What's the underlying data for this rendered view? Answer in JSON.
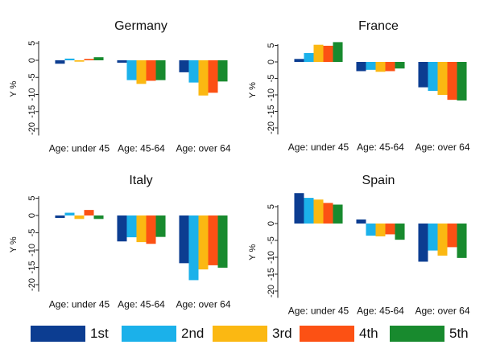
{
  "chart_data": [
    {
      "type": "bar",
      "title": "Germany",
      "ylabel": "Y %",
      "xlabel": "",
      "yticks": [
        5,
        0,
        -5,
        -10,
        -15,
        -20
      ],
      "ylim": [
        -22,
        6
      ],
      "grid": false,
      "categories": [
        "Age: under 45",
        "Age: 45-64",
        "Age: over 64"
      ],
      "series": [
        {
          "name": "1st",
          "values": [
            -1.0,
            -0.7,
            -3.5
          ]
        },
        {
          "name": "2nd",
          "values": [
            0.5,
            -5.8,
            -6.5
          ]
        },
        {
          "name": "3rd",
          "values": [
            -0.4,
            -6.9,
            -10.3
          ]
        },
        {
          "name": "4th",
          "values": [
            0.4,
            -6.0,
            -9.5
          ]
        },
        {
          "name": "5th",
          "values": [
            0.9,
            -5.8,
            -6.2
          ]
        }
      ]
    },
    {
      "type": "bar",
      "title": "France",
      "ylabel": "Y %",
      "xlabel": "",
      "yticks": [
        5,
        0,
        -5,
        -10,
        -15,
        -20
      ],
      "ylim": [
        -22,
        7
      ],
      "grid": false,
      "categories": [
        "Age: under 45",
        "Age: 45-64",
        "Age: over 64"
      ],
      "series": [
        {
          "name": "1st",
          "values": [
            0.9,
            -2.8,
            -7.7
          ]
        },
        {
          "name": "2nd",
          "values": [
            2.7,
            -2.4,
            -8.8
          ]
        },
        {
          "name": "3rd",
          "values": [
            5.2,
            -3.0,
            -10.0
          ]
        },
        {
          "name": "4th",
          "values": [
            4.9,
            -2.8,
            -11.5
          ]
        },
        {
          "name": "5th",
          "values": [
            6.0,
            -2.0,
            -11.7
          ]
        }
      ]
    },
    {
      "type": "bar",
      "title": "Italy",
      "ylabel": "Y %",
      "xlabel": "",
      "yticks": [
        5,
        0,
        -5,
        -10,
        -15,
        -20
      ],
      "ylim": [
        -22,
        6
      ],
      "grid": false,
      "categories": [
        "Age: under 45",
        "Age: 45-64",
        "Age: over 64"
      ],
      "series": [
        {
          "name": "1st",
          "values": [
            -0.7,
            -7.5,
            -13.8
          ]
        },
        {
          "name": "2nd",
          "values": [
            0.8,
            -6.3,
            -18.7
          ]
        },
        {
          "name": "3rd",
          "values": [
            -1.0,
            -7.7,
            -15.6
          ]
        },
        {
          "name": "4th",
          "values": [
            1.6,
            -8.2,
            -14.4
          ]
        },
        {
          "name": "5th",
          "values": [
            -1.0,
            -6.2,
            -15.1
          ]
        }
      ]
    },
    {
      "type": "bar",
      "title": "Spain",
      "ylabel": "Y %",
      "xlabel": "",
      "yticks": [
        5,
        0,
        -5,
        -10,
        -15,
        -20
      ],
      "ylim": [
        -22,
        11
      ],
      "grid": false,
      "categories": [
        "Age: under 45",
        "Age: 45-64",
        "Age: over 64"
      ],
      "series": [
        {
          "name": "1st",
          "values": [
            9.0,
            1.2,
            -11.3
          ]
        },
        {
          "name": "2nd",
          "values": [
            7.6,
            -3.6,
            -8.0
          ]
        },
        {
          "name": "3rd",
          "values": [
            7.1,
            -3.8,
            -9.5
          ]
        },
        {
          "name": "4th",
          "values": [
            6.1,
            -3.2,
            -7.0
          ]
        },
        {
          "name": "5th",
          "values": [
            5.6,
            -4.8,
            -10.2
          ]
        }
      ]
    }
  ],
  "legend": {
    "placement": "bottom",
    "items": [
      {
        "label": "1st",
        "color": "#0c3d91"
      },
      {
        "label": "2nd",
        "color": "#1bb1ea"
      },
      {
        "label": "3rd",
        "color": "#fbb812"
      },
      {
        "label": "4th",
        "color": "#fc5114"
      },
      {
        "label": "5th",
        "color": "#188a2e"
      }
    ]
  }
}
